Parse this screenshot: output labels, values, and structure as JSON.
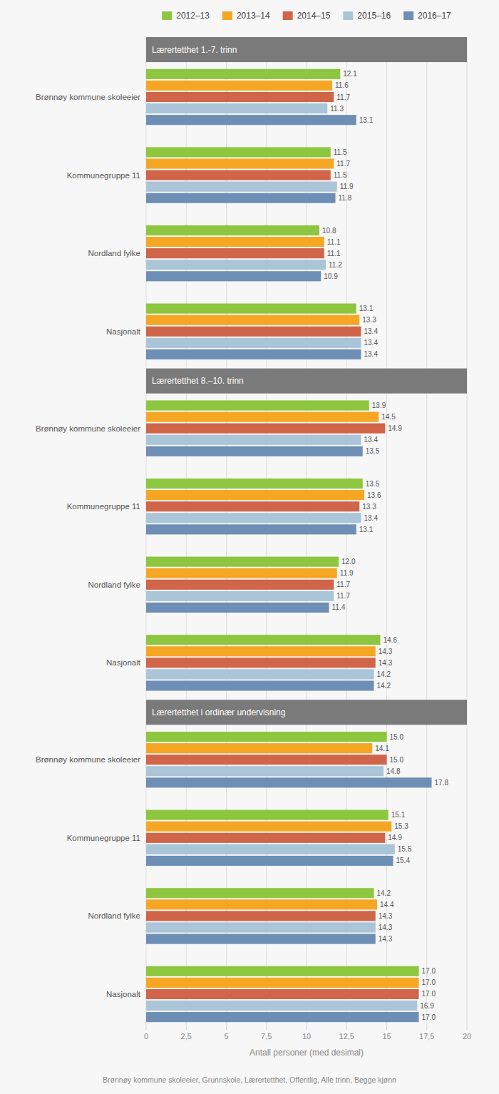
{
  "chart_data": [
    {
      "type": "bar",
      "orientation": "horizontal",
      "title": "Lærertetthet 1.-7. trinn",
      "categories": [
        "Brønnøy kommune skoleeier",
        "Kommunegruppe 11",
        "Nordland fylke",
        "Nasjonalt"
      ],
      "series": [
        {
          "name": "2012–13",
          "color": "#8dc63f",
          "values": [
            12.1,
            11.5,
            10.8,
            13.1
          ],
          "value_labels": [
            "12.1",
            "11.5",
            "10.8",
            "13.1"
          ]
        },
        {
          "name": "2013–14",
          "color": "#f5a623",
          "values": [
            11.6,
            11.7,
            11.1,
            13.3
          ],
          "value_labels": [
            "11.6",
            "11.7",
            "11.1",
            "13.3"
          ]
        },
        {
          "name": "2014–15",
          "color": "#d0654a",
          "values": [
            11.7,
            11.5,
            11.1,
            13.4
          ],
          "value_labels": [
            "11.7",
            "11.5",
            "11.1",
            "13.4"
          ]
        },
        {
          "name": "2015–16",
          "color": "#aac4d8",
          "values": [
            11.3,
            11.9,
            11.2,
            13.4
          ],
          "value_labels": [
            "11.3",
            "11.9",
            "11.2",
            "13.4"
          ]
        },
        {
          "name": "2016–17",
          "color": "#6e8fb5",
          "values": [
            13.1,
            11.8,
            10.9,
            13.4
          ],
          "value_labels": [
            "13.1",
            "11.8",
            "10.9",
            "13.4"
          ]
        }
      ],
      "xlim": [
        0,
        20
      ],
      "xticks": [
        0,
        2.5,
        5,
        7.5,
        10,
        12.5,
        15,
        17.5,
        20
      ],
      "grid": true,
      "data_labels": true,
      "tick_labels": false,
      "legend": "top"
    },
    {
      "type": "bar",
      "orientation": "horizontal",
      "title": "Lærertetthet 8.–10. trinn",
      "categories": [
        "Brønnøy kommune skoleeier",
        "Kommunegruppe 11",
        "Nordland fylke",
        "Nasjonalt"
      ],
      "series": [
        {
          "name": "2012–13",
          "color": "#8dc63f",
          "values": [
            13.9,
            13.5,
            12.0,
            14.6
          ],
          "value_labels": [
            "13.9",
            "13.5",
            "12.0",
            "14.6"
          ]
        },
        {
          "name": "2013–14",
          "color": "#f5a623",
          "values": [
            14.5,
            13.6,
            11.9,
            14.3
          ],
          "value_labels": [
            "14.5",
            "13.6",
            "11.9",
            "14.3"
          ]
        },
        {
          "name": "2014–15",
          "color": "#d0654a",
          "values": [
            14.9,
            13.3,
            11.7,
            14.3
          ],
          "value_labels": [
            "14.9",
            "13.3",
            "11.7",
            "14.3"
          ]
        },
        {
          "name": "2015–16",
          "color": "#aac4d8",
          "values": [
            13.4,
            13.4,
            11.7,
            14.2
          ],
          "value_labels": [
            "13.4",
            "13.4",
            "11.7",
            "14.2"
          ]
        },
        {
          "name": "2016–17",
          "color": "#6e8fb5",
          "values": [
            13.5,
            13.1,
            11.4,
            14.2
          ],
          "value_labels": [
            "13.5",
            "13.1",
            "11.4",
            "14.2"
          ]
        }
      ],
      "xlim": [
        0,
        20
      ],
      "xticks": [
        0,
        2.5,
        5,
        7.5,
        10,
        12.5,
        15,
        17.5,
        20
      ],
      "grid": true,
      "data_labels": true,
      "tick_labels": false
    },
    {
      "type": "bar",
      "orientation": "horizontal",
      "title": "Lærertetthet i ordinær undervisning",
      "categories": [
        "Brønnøy kommune skoleeier",
        "Kommunegruppe 11",
        "Nordland fylke",
        "Nasjonalt"
      ],
      "series": [
        {
          "name": "2012–13",
          "color": "#8dc63f",
          "values": [
            15.0,
            15.1,
            14.2,
            17.0
          ],
          "value_labels": [
            "15.0",
            "15.1",
            "14.2",
            "17.0"
          ]
        },
        {
          "name": "2013–14",
          "color": "#f5a623",
          "values": [
            14.1,
            15.3,
            14.4,
            17.0
          ],
          "value_labels": [
            "14.1",
            "15.3",
            "14.4",
            "17.0"
          ]
        },
        {
          "name": "2014–15",
          "color": "#d0654a",
          "values": [
            15.0,
            14.9,
            14.3,
            17.0
          ],
          "value_labels": [
            "15.0",
            "14.9",
            "14.3",
            "17.0"
          ]
        },
        {
          "name": "2015–16",
          "color": "#aac4d8",
          "values": [
            14.8,
            15.5,
            14.3,
            16.9
          ],
          "value_labels": [
            "14.8",
            "15.5",
            "14.3",
            "16.9"
          ]
        },
        {
          "name": "2016–17",
          "color": "#6e8fb5",
          "values": [
            17.8,
            15.4,
            14.3,
            17.0
          ],
          "value_labels": [
            "17.8",
            "15.4",
            "14.3",
            "17.0"
          ]
        }
      ],
      "xlim": [
        0,
        20
      ],
      "xticks": [
        0,
        {
          "value": 2.5,
          "label": "2,5"
        },
        5,
        {
          "value": 7.5,
          "label": "7,5"
        },
        10,
        {
          "value": 12.5,
          "label": "12,5"
        },
        15,
        {
          "value": 17.5,
          "label": "17,5"
        },
        20
      ],
      "xlabel": "Antall personer (med desimal)",
      "annotations": [
        "Brønnøy kommune skoleeier, Grunnskole, Lærertetthet, Offentlig, Alle trinn, Begge kjønn"
      ],
      "grid": true,
      "data_labels": true
    }
  ]
}
